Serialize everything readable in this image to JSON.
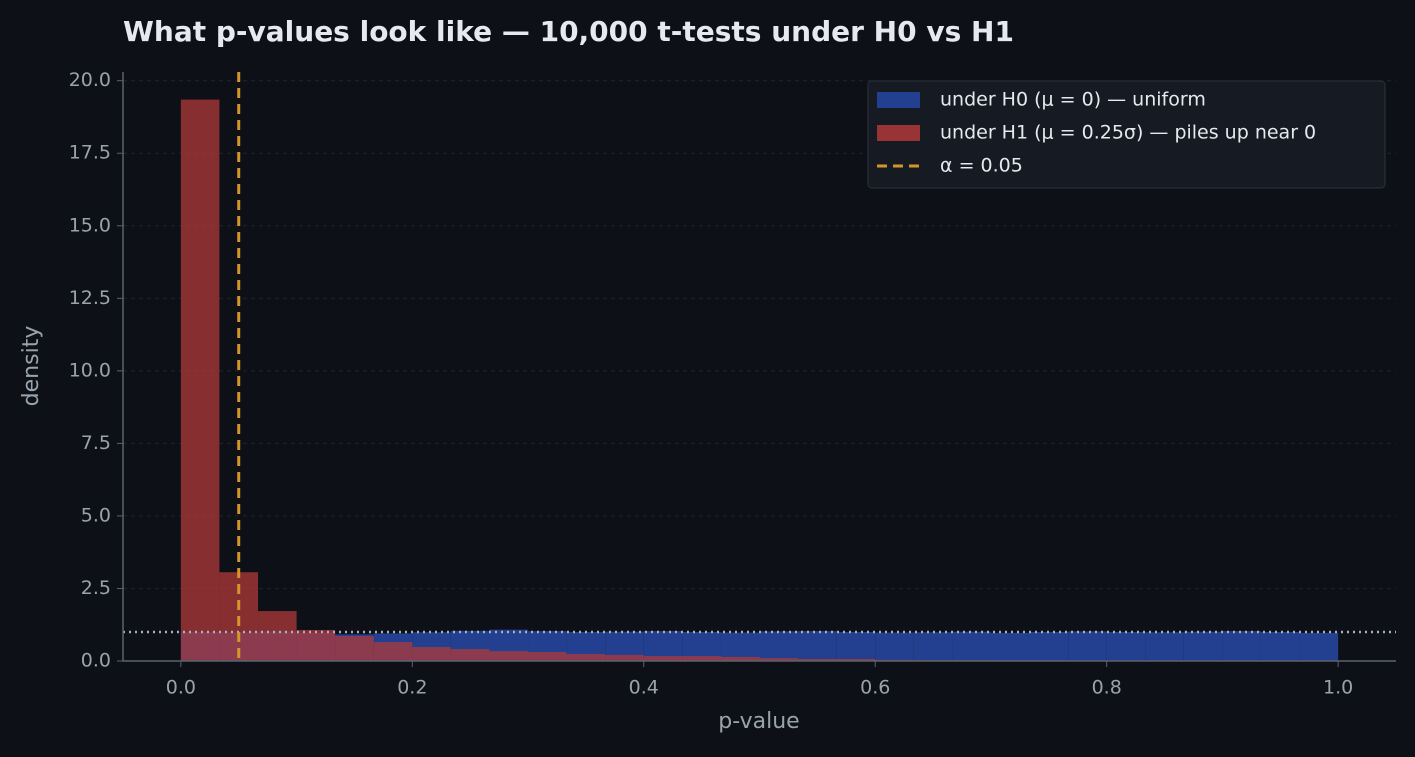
{
  "chart_data": {
    "type": "histogram",
    "title": "What p-values look like — 10,000 t-tests under H0 vs H1",
    "x_label": "p-value",
    "y_label": "density",
    "bins": [
      0,
      0.0333,
      0.0667,
      0.1,
      0.1333,
      0.1667,
      0.2,
      0.2333,
      0.2667,
      0.3,
      0.3333,
      0.3667,
      0.4,
      0.4333,
      0.4667,
      0.5,
      0.5333,
      0.5667,
      0.6,
      0.6333,
      0.6667,
      0.7,
      0.7333,
      0.7667,
      0.8,
      0.8333,
      0.8667,
      0.9,
      0.9333,
      0.9667,
      1
    ],
    "series": [
      {
        "name": "under H0 (μ = 0) — uniform",
        "color": "#22408f",
        "values": [
          1.0,
          0.98,
          1.02,
          0.97,
          0.92,
          0.95,
          0.99,
          1.04,
          1.08,
          1.03,
          1.0,
          1.01,
          1.03,
          1.0,
          0.98,
          1.02,
          1.03,
          1.0,
          0.98,
          0.99,
          1.01,
          0.97,
          1.0,
          1.02,
          1.0,
          0.99,
          1.01,
          1.03,
          1.0,
          0.97
        ]
      },
      {
        "name": "under H1 (μ = 0.25σ) — piles up near 0",
        "color": "#b03a3a",
        "values": [
          19.35,
          3.06,
          1.72,
          1.07,
          0.86,
          0.65,
          0.48,
          0.41,
          0.34,
          0.31,
          0.24,
          0.21,
          0.17,
          0.17,
          0.14,
          0.1,
          0.07,
          0.07,
          0.04,
          0.03,
          0.03,
          0.02,
          0.02,
          0.01,
          0.01,
          0.01,
          0.01,
          0,
          0,
          0
        ]
      }
    ],
    "alpha_line": {
      "name": "α = 0.05",
      "value": 0.05,
      "color": "#d4952a"
    },
    "reference_line": {
      "value": 1,
      "color": "#a9b1bb"
    },
    "xlim": [
      -0.05,
      1.05
    ],
    "ylim": [
      0,
      20.3
    ],
    "xticks": [
      {
        "value": 0,
        "label": "0.0"
      },
      0.2,
      0.4,
      0.6,
      0.8,
      {
        "value": 1,
        "label": "1.0"
      }
    ],
    "yticks": [
      {
        "value": 0,
        "label": "0.0"
      },
      2.5,
      {
        "value": 5,
        "label": "5.0"
      },
      7.5,
      {
        "value": 10,
        "label": "10.0"
      },
      12.5,
      {
        "value": 15,
        "label": "15.0"
      },
      17.5,
      {
        "value": 20,
        "label": "20.0"
      }
    ],
    "grid": true,
    "legend": "upper right"
  }
}
